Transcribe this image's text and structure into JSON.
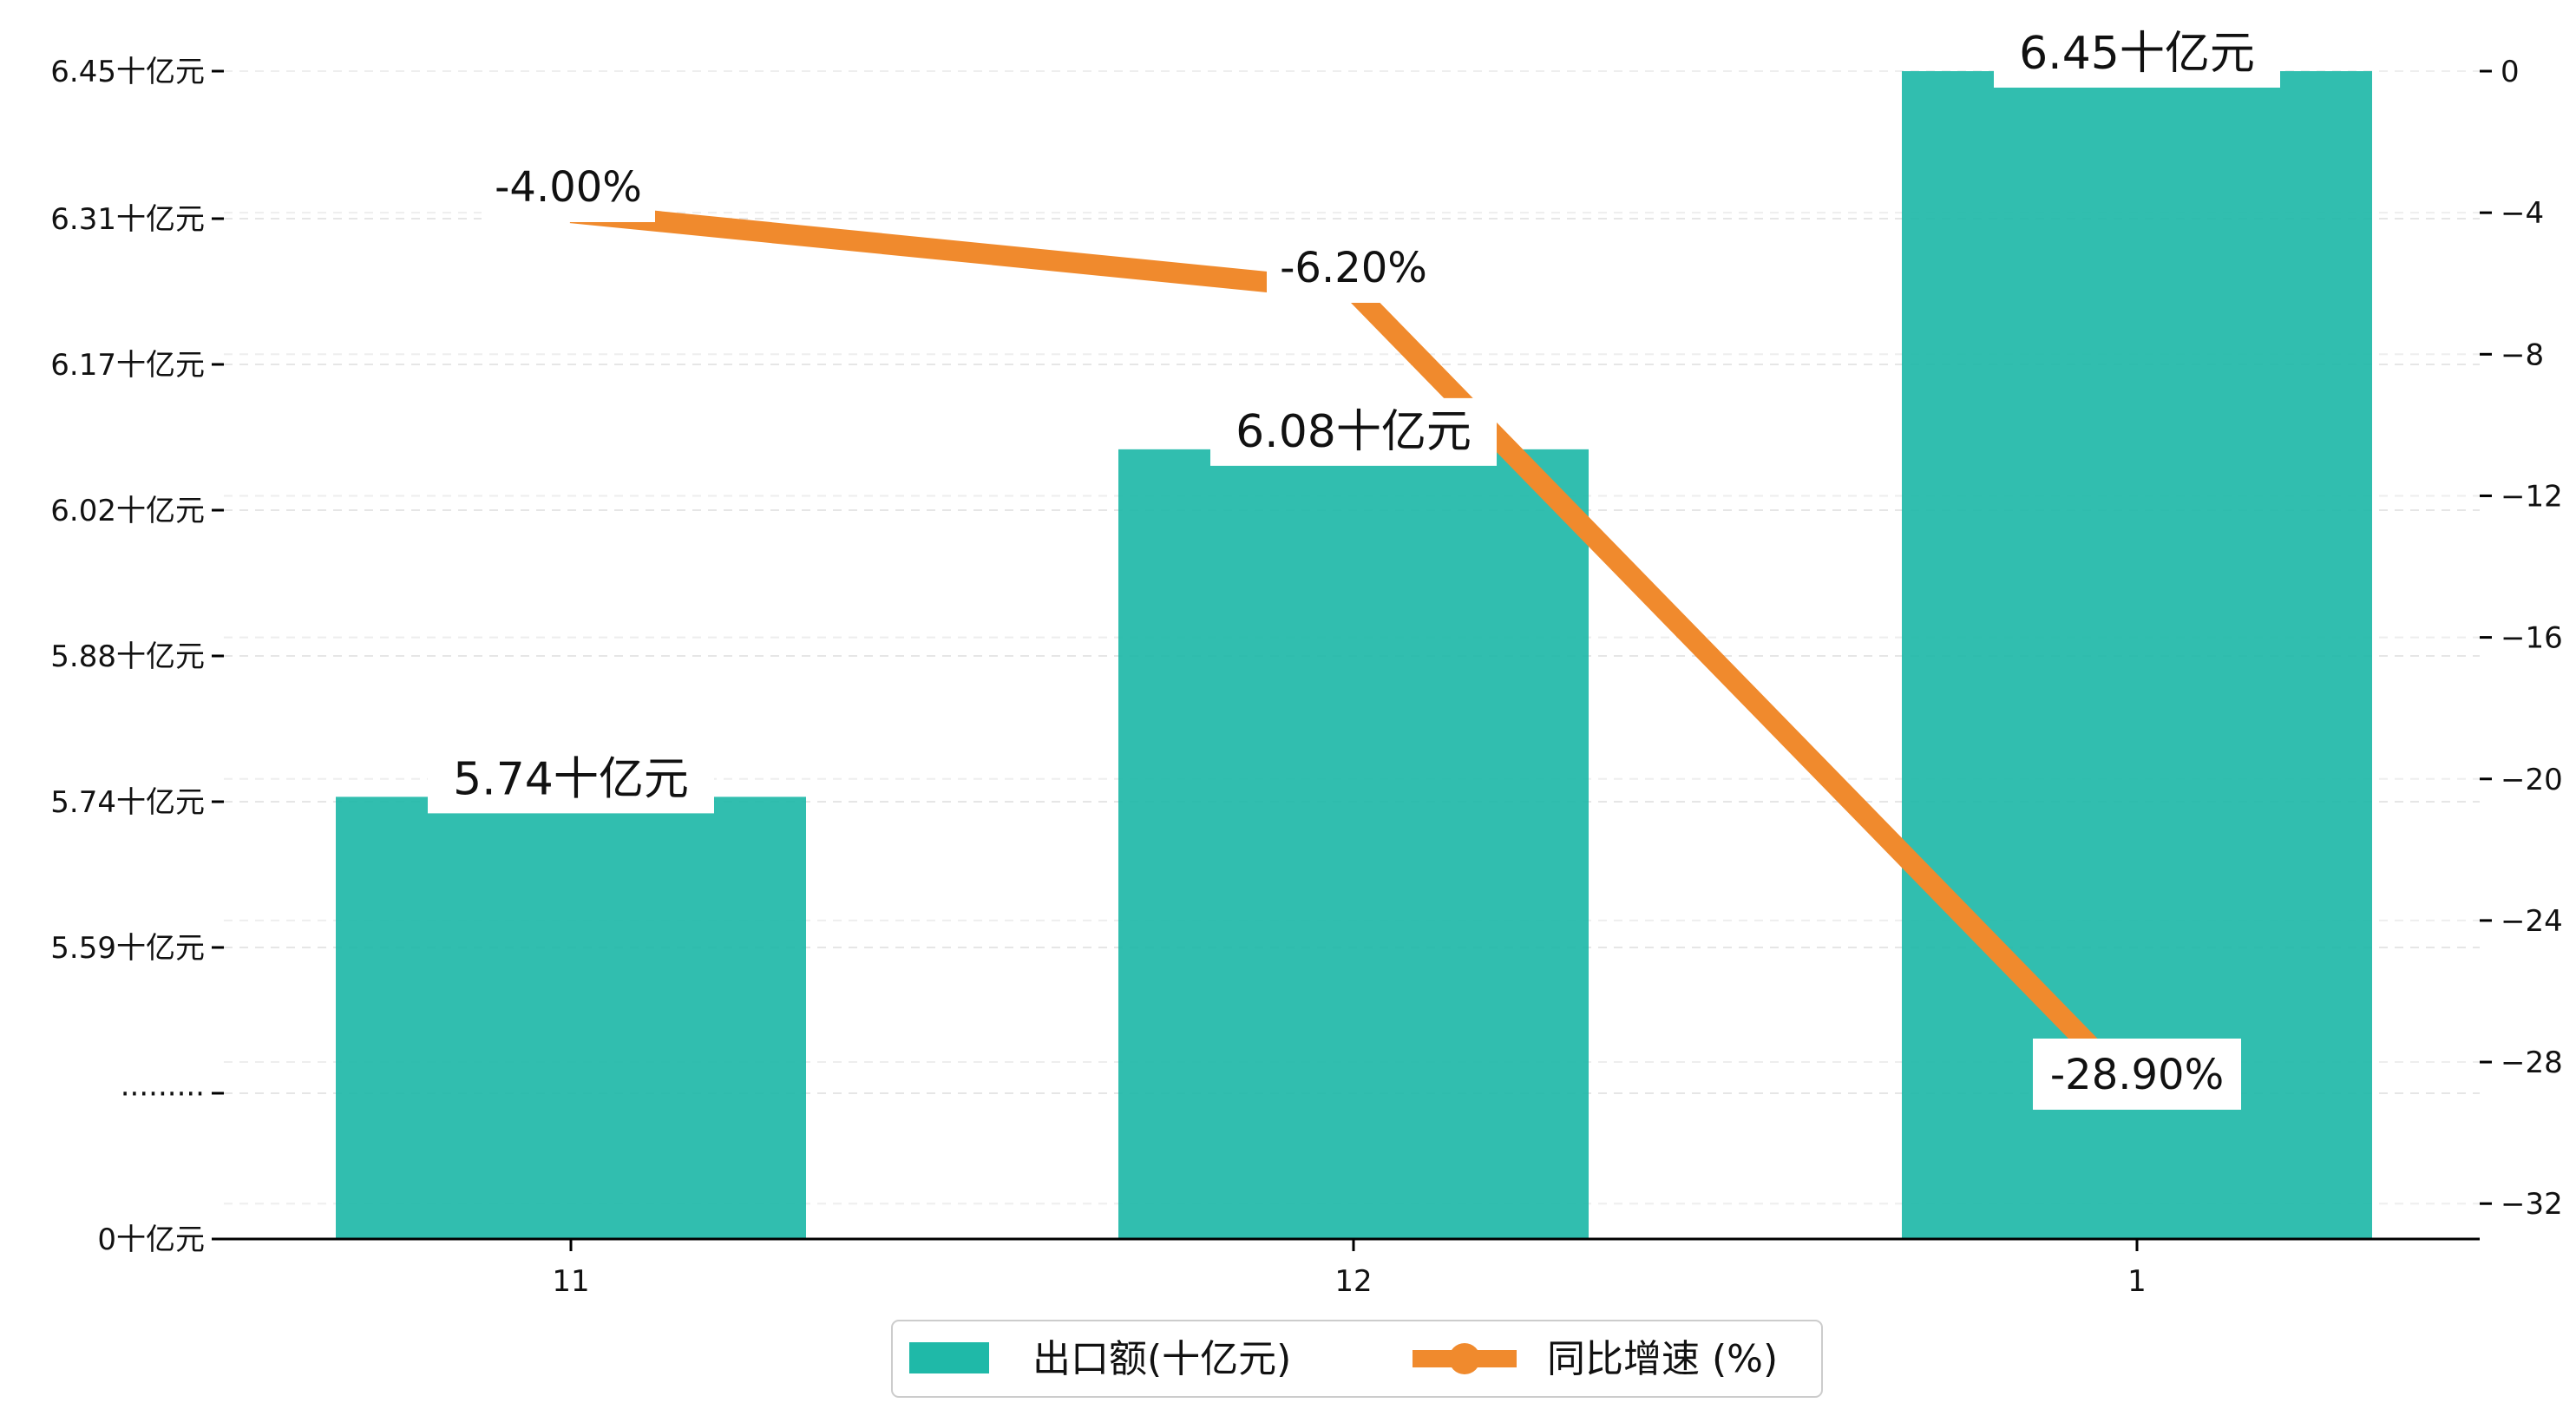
{
  "chart_data": {
    "type": "bar+line",
    "categories": [
      "11",
      "12",
      "1"
    ],
    "series": [
      {
        "name": "出口额(十亿元)",
        "type": "bar",
        "axis": "left",
        "values": [
          5.74,
          6.08,
          6.45
        ],
        "data_labels": [
          "5.74十亿元",
          "6.08十亿元",
          "6.45十亿元"
        ],
        "color": "#1fb9a8"
      },
      {
        "name": "同比增速 (%)",
        "type": "line",
        "axis": "right",
        "values": [
          -4.0,
          -6.2,
          -28.9
        ],
        "data_labels": [
          "-4.00%",
          "-6.20%",
          "-28.90%"
        ],
        "color": "#f08a2d"
      }
    ],
    "y_left": {
      "tick_labels": [
        "0十亿元",
        "·········",
        "5.59十亿元",
        "5.74十亿元",
        "5.88十亿元",
        "6.02十亿元",
        "6.17十亿元",
        "6.31十亿元",
        "6.45十亿元"
      ],
      "note": "broken axis: 0 at bottom, then jumps to ~5.45"
    },
    "y_right": {
      "ylim": [
        -33,
        0
      ],
      "ticks": [
        0,
        -4,
        -8,
        -12,
        -16,
        -20,
        -24,
        -28,
        -32
      ],
      "tick_labels": [
        "0",
        "−4",
        "−8",
        "−12",
        "−16",
        "−20",
        "−24",
        "−28",
        "−32"
      ]
    },
    "grid": "horizontal dashed",
    "legend_position": "bottom-center"
  }
}
